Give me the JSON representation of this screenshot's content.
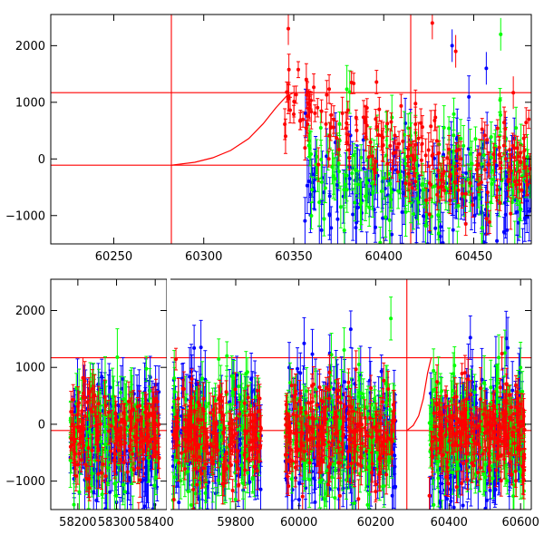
{
  "chart_data": [
    {
      "type": "scatter",
      "title": "",
      "xlabel": "",
      "ylabel": "",
      "xlim": [
        60215,
        60482
      ],
      "ylim": [
        -1500,
        2550
      ],
      "x_ticks": [
        "60250",
        "60300",
        "60350",
        "60400",
        "60450"
      ],
      "y_ticks": [
        "−1000",
        "0",
        "1000",
        "2000"
      ],
      "x_tick_values": [
        60250,
        60300,
        60350,
        60400,
        60450
      ],
      "y_tick_values": [
        -1000,
        0,
        1000,
        2000
      ],
      "reference_lines": {
        "horizontal": [
          1170,
          -110
        ],
        "vertical": [
          60282,
          60415
        ]
      },
      "model_curve": {
        "color": "#ff0000",
        "x": [
          60282,
          60295,
          60305,
          60315,
          60325,
          60333,
          60340,
          60346,
          60350
        ],
        "y": [
          -110,
          -60,
          20,
          150,
          360,
          620,
          900,
          1110,
          1170
        ]
      },
      "series": [
        {
          "color": "#ff0000",
          "segments": [
            [
              60345,
              60482
            ]
          ],
          "x_start": 60345,
          "x_end": 60482,
          "center_start": 1050,
          "center_end": -180,
          "scatter": 380,
          "error": 220
        },
        {
          "color": "#00ff00",
          "segments": [
            [
              60358,
              60482
            ]
          ],
          "x_start": 60358,
          "x_end": 60482,
          "center_start": -200,
          "center_end": -300,
          "scatter": 480,
          "error": 330
        },
        {
          "color": "#0000ff",
          "segments": [
            [
              60356,
              60482
            ]
          ],
          "x_start": 60356,
          "x_end": 60482,
          "center_start": -600,
          "center_end": -500,
          "scatter": 560,
          "error": 400
        }
      ],
      "outliers": [
        {
          "x": 60347,
          "y": 2300,
          "color": "#ff0000"
        },
        {
          "x": 60427,
          "y": 2400,
          "color": "#ff0000"
        },
        {
          "x": 60440,
          "y": 1900,
          "color": "#ff0000"
        },
        {
          "x": 60457,
          "y": 1600,
          "color": "#0000ff"
        },
        {
          "x": 60465,
          "y": 2200,
          "color": "#00ff00"
        },
        {
          "x": 60472,
          "y": 1170,
          "color": "#ff0000"
        },
        {
          "x": 60438,
          "y": 2000,
          "color": "#0000ff"
        }
      ]
    },
    {
      "type": "scatter",
      "title": "",
      "xlabel": "",
      "ylabel": "",
      "ylim": [
        -1500,
        2550
      ],
      "y_ticks": [
        "−1000",
        "0",
        "1000",
        "2000"
      ],
      "y_tick_values": [
        -1000,
        0,
        1000,
        2000
      ],
      "panels": [
        {
          "xlim": [
            58130,
            58430
          ],
          "x_ticks": [
            "58200",
            "58300",
            "58400"
          ],
          "x_tick_values": [
            58200,
            58300,
            58400
          ],
          "segments": [
            [
              58180,
              58410
            ]
          ]
        },
        {
          "xlim": [
            59620,
            59900
          ],
          "x_ticks": [
            "59800"
          ],
          "x_tick_values": [
            59800
          ],
          "segments": [
            [
              59625,
              59870
            ]
          ]
        },
        {
          "xlim": [
            59930,
            60270
          ],
          "x_ticks": [
            "60000",
            "60200"
          ],
          "x_tick_values": [
            60000,
            60200
          ],
          "segments": [
            [
              59965,
              60252
            ]
          ]
        },
        {
          "xlim": [
            60270,
            60630
          ],
          "x_ticks": [
            "60400",
            "60600"
          ],
          "x_tick_values": [
            60400,
            60600
          ],
          "segments": [
            [
              60345,
              60612
            ]
          ]
        }
      ],
      "reference_lines": {
        "horizontal": [
          1170,
          -110
        ],
        "vertical": [
          60282
        ]
      },
      "model_curve": {
        "color": "#ff0000",
        "x": [
          60282,
          60300,
          60315,
          60328,
          60340,
          60350
        ],
        "y": [
          -110,
          -20,
          150,
          450,
          900,
          1170
        ]
      },
      "series": [
        {
          "color": "#ff0000",
          "center": -150,
          "scatter": 420,
          "error": 260
        },
        {
          "color": "#00ff00",
          "center": -200,
          "scatter": 520,
          "error": 360
        },
        {
          "color": "#0000ff",
          "center": -300,
          "scatter": 580,
          "error": 420
        }
      ]
    }
  ]
}
